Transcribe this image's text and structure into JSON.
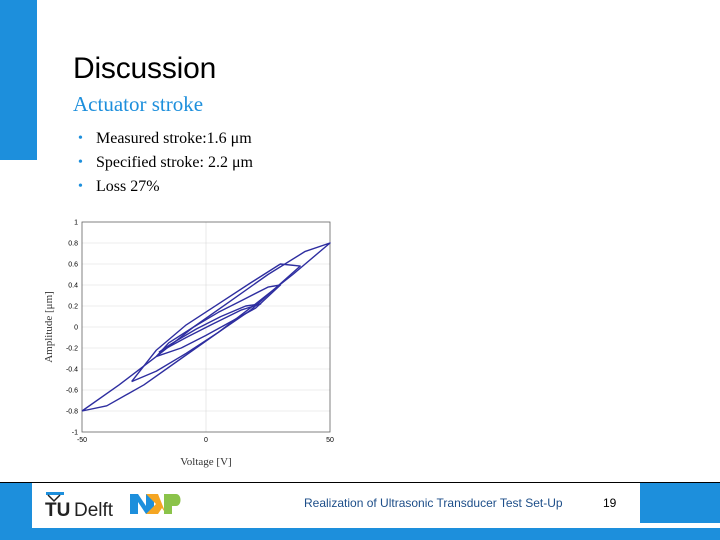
{
  "slide": {
    "title": "Discussion",
    "subtitle": "Actuator stroke",
    "bullets": [
      "Measured stroke:1.6 μm",
      "Specified stroke: 2.2 μm",
      "Loss 27%"
    ],
    "bullet_glyph": "•"
  },
  "footer": {
    "text": "Realization of Ultrasonic Transducer Test Set-Up",
    "page_number": "19"
  },
  "logos": {
    "tudelft": "TUDelft",
    "nxp": "NXP"
  },
  "colors": {
    "accent": "#1d8fdc",
    "series": "#2e2ea0",
    "footer_text": "#1d4e89"
  },
  "chart_data": {
    "type": "line",
    "xlabel": "Voltage [V]",
    "ylabel": "Amplitude [μm]",
    "xlim": [
      -50,
      50
    ],
    "ylim": [
      -1,
      1
    ],
    "xticks": [
      -50,
      0,
      50
    ],
    "yticks": [
      1,
      0.8,
      0.6,
      0.4,
      0.2,
      0,
      -0.2,
      -0.4,
      -0.6,
      -0.8,
      -1
    ],
    "grid": true,
    "series": [
      {
        "x": [
          -50,
          -40,
          -25,
          -10,
          5,
          20,
          35,
          50,
          40,
          25,
          10,
          -5,
          -20,
          -35,
          -50
        ],
        "y": [
          -0.8,
          -0.75,
          -0.55,
          -0.3,
          -0.05,
          0.22,
          0.5,
          0.8,
          0.72,
          0.5,
          0.25,
          0.0,
          -0.28,
          -0.55,
          -0.8
        ]
      },
      {
        "x": [
          -30,
          -20,
          -8,
          5,
          18,
          38,
          30,
          18,
          5,
          -8,
          -20,
          -30
        ],
        "y": [
          -0.52,
          -0.42,
          -0.25,
          -0.05,
          0.16,
          0.58,
          0.6,
          0.42,
          0.22,
          0.02,
          -0.22,
          -0.52
        ]
      },
      {
        "x": [
          -20,
          -10,
          0,
          10,
          20,
          30,
          25,
          15,
          5,
          -5,
          -15,
          -20
        ],
        "y": [
          -0.28,
          -0.2,
          -0.08,
          0.05,
          0.18,
          0.4,
          0.38,
          0.26,
          0.14,
          0.0,
          -0.15,
          -0.28
        ]
      },
      {
        "x": [
          -19,
          -8,
          2,
          14,
          22,
          16,
          6,
          -4,
          -14,
          -19
        ],
        "y": [
          -0.24,
          -0.1,
          0.02,
          0.16,
          0.22,
          0.2,
          0.1,
          -0.02,
          -0.16,
          -0.24
        ]
      }
    ]
  }
}
